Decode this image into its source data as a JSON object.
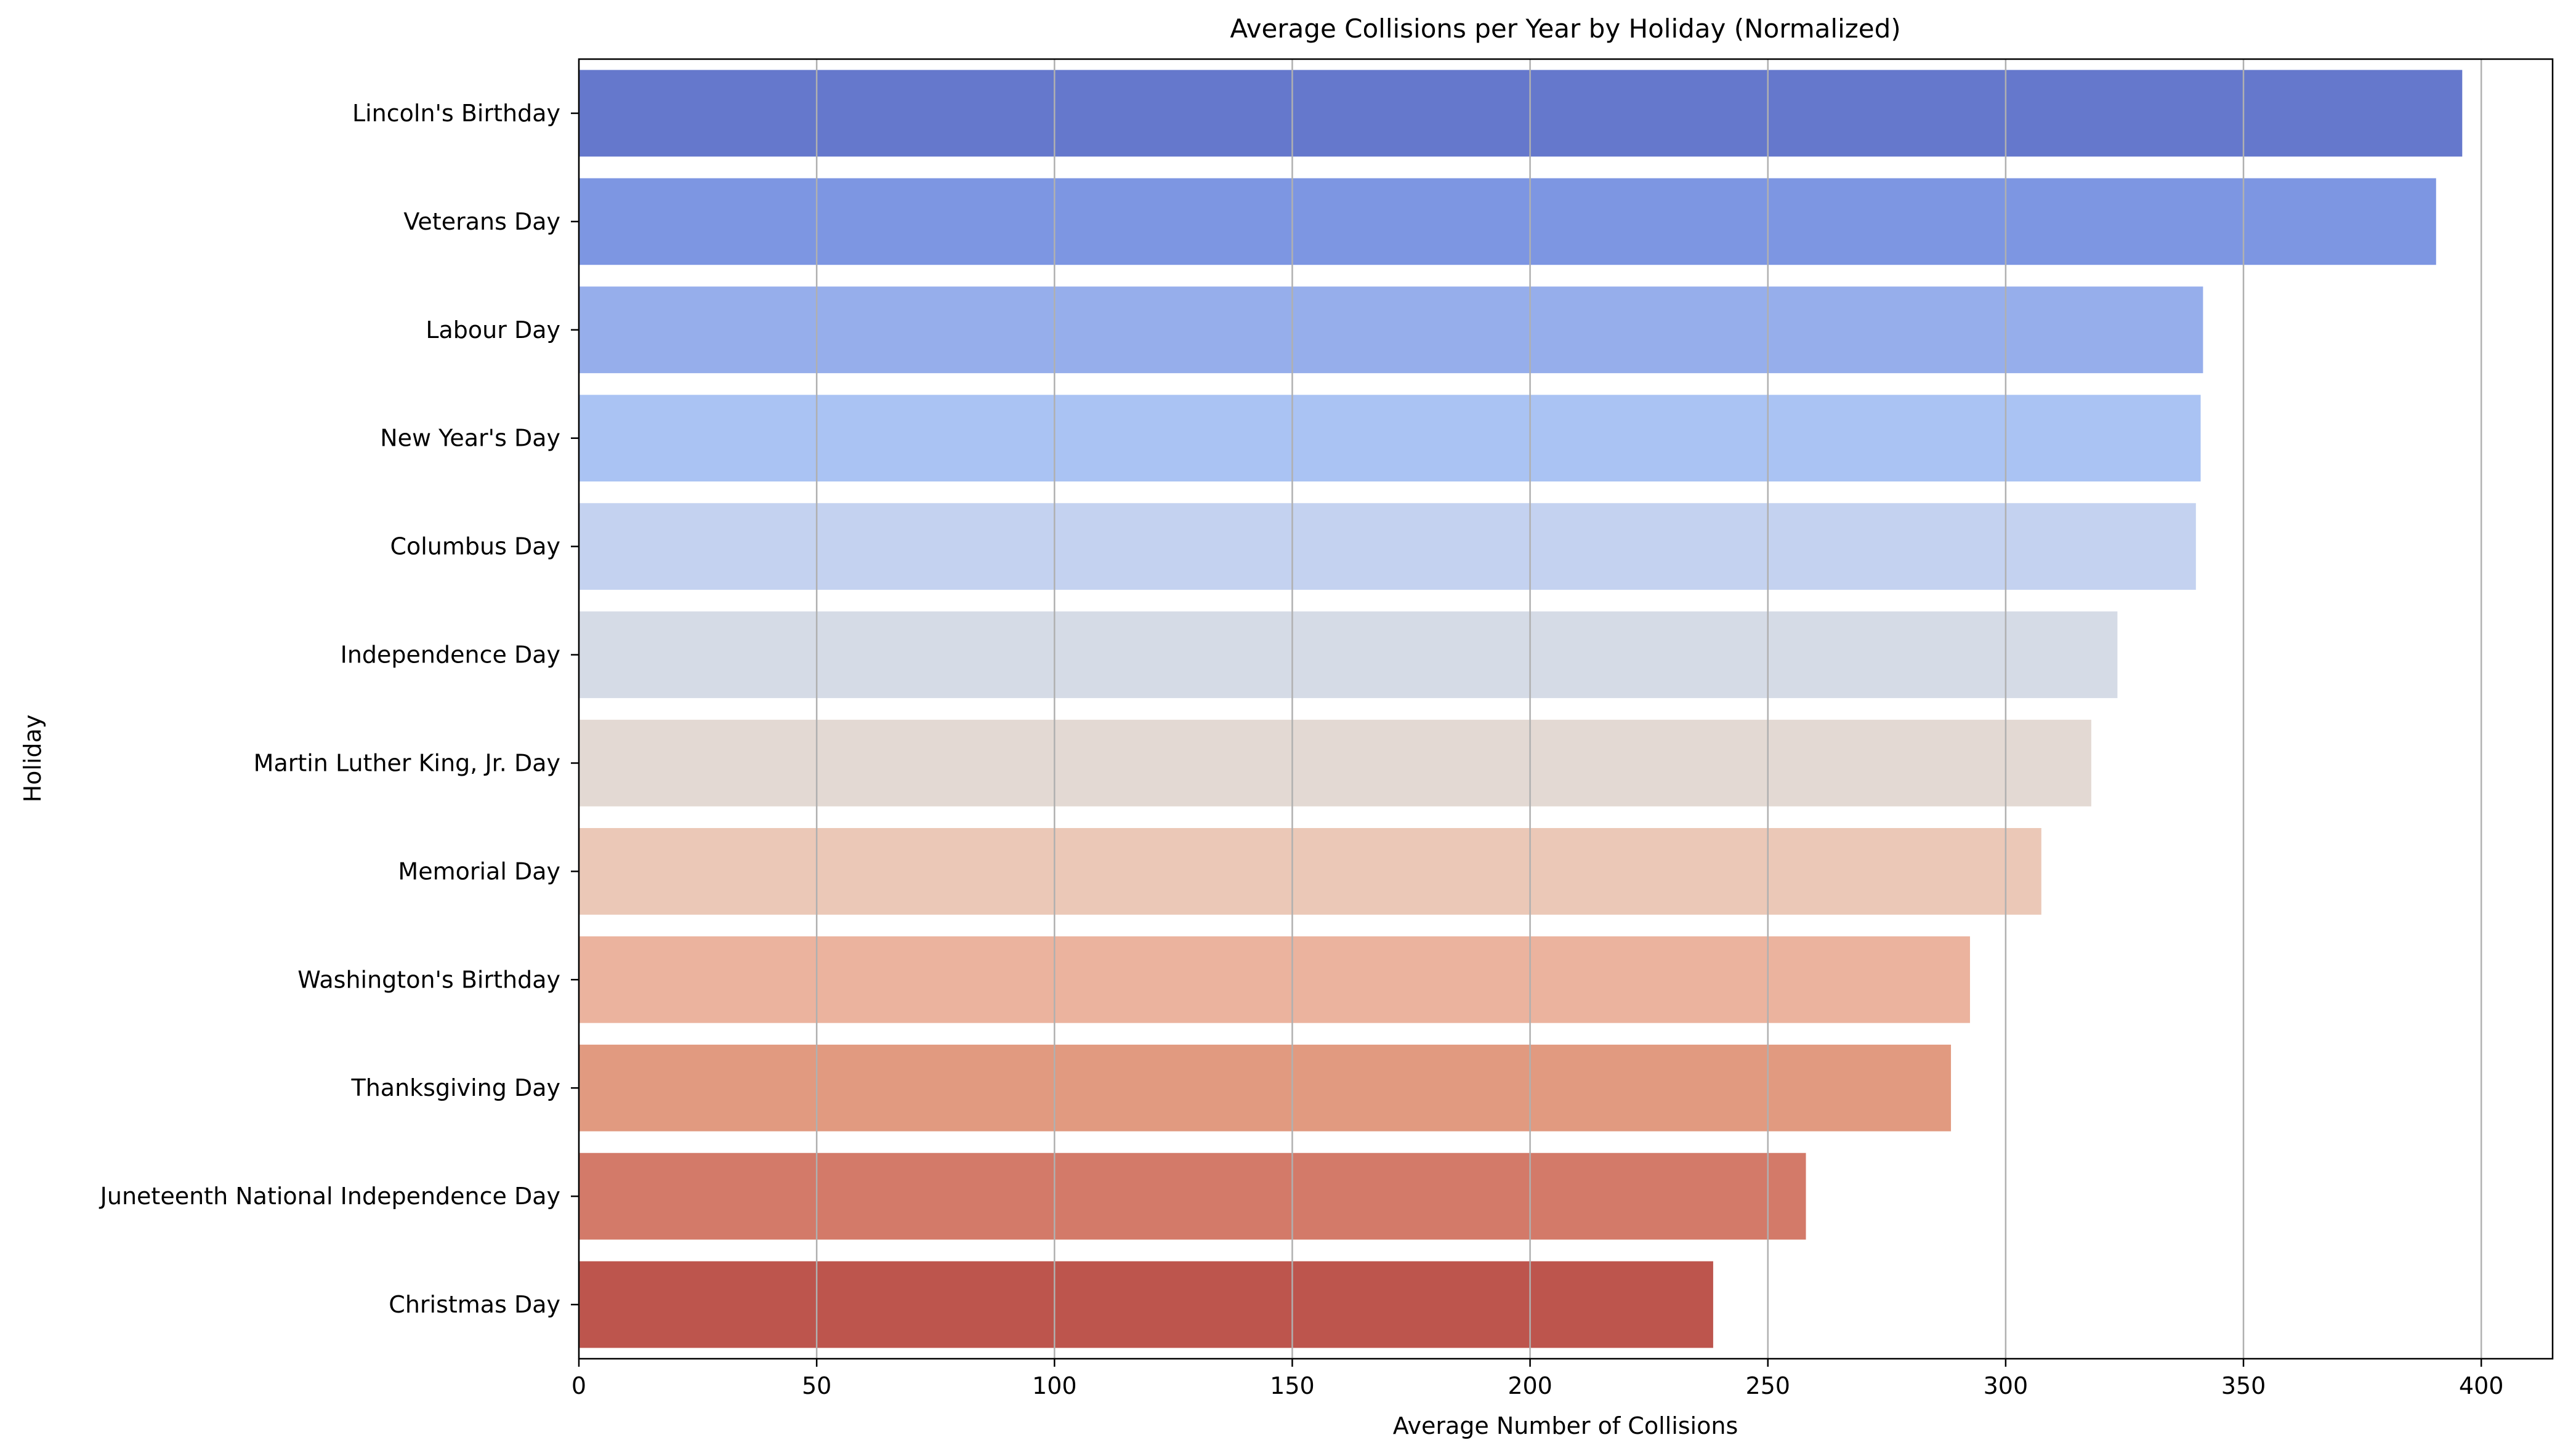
{
  "chart_data": {
    "type": "bar",
    "orientation": "horizontal",
    "title": "Average Collisions per Year by Holiday (Normalized)",
    "xlabel": "Average Number of Collisions",
    "ylabel": "Holiday",
    "xlim": [
      0,
      415
    ],
    "xticks": [
      0,
      50,
      100,
      150,
      200,
      250,
      300,
      350,
      400
    ],
    "grid": "vertical",
    "categories": [
      "Lincoln's Birthday",
      "Veterans Day",
      "Labour Day",
      "New Year's Day",
      "Columbus Day",
      "Independence Day",
      "Martin Luther King, Jr. Day",
      "Memorial Day",
      "Washington's Birthday",
      "Thanksgiving Day",
      "Juneteenth National Independence Day",
      "Christmas Day"
    ],
    "values": [
      396,
      390.5,
      341.5,
      341,
      340,
      323.5,
      318,
      307.5,
      292.5,
      288.5,
      258,
      238.5
    ],
    "colors": [
      "#6578cc",
      "#7d96e2",
      "#96aeeb",
      "#aac3f3",
      "#c4d2f0",
      "#d5dbe6",
      "#e3d9d3",
      "#ebc8b7",
      "#ebb39e",
      "#e19a80",
      "#d37a69",
      "#bd554d"
    ]
  }
}
